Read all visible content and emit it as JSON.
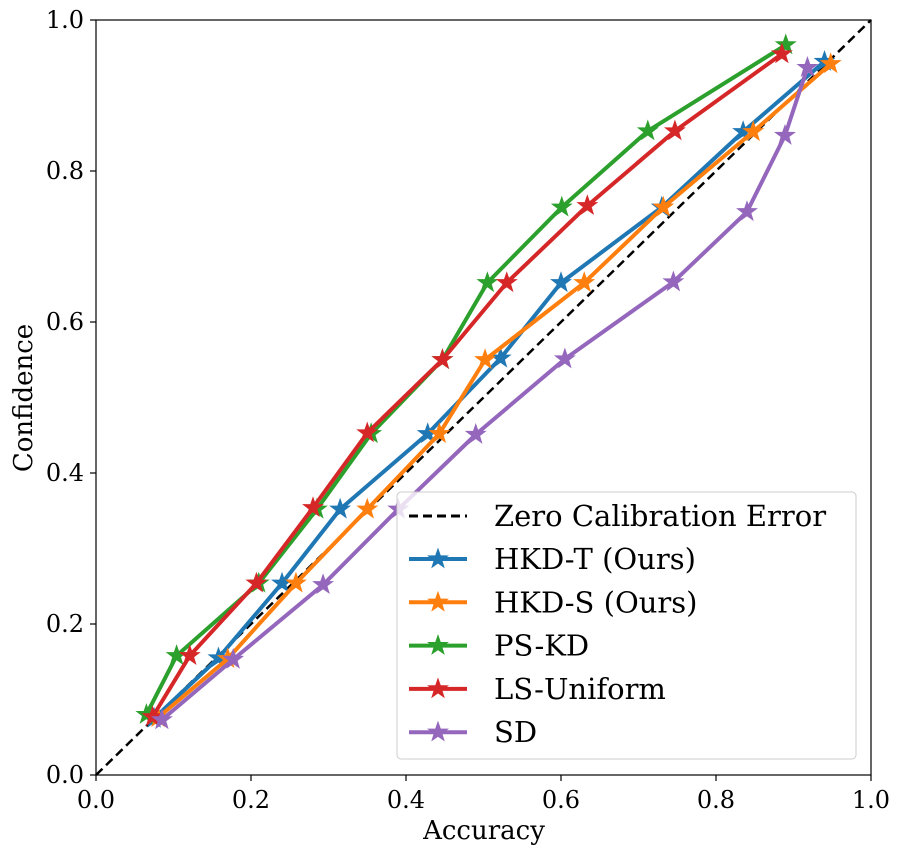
{
  "chart_data": {
    "type": "line",
    "xlabel": "Accuracy",
    "ylabel": "Confidence",
    "xlim": [
      0.0,
      1.0
    ],
    "ylim": [
      0.0,
      1.0
    ],
    "x_ticks": [
      "0.0",
      "0.2",
      "0.4",
      "0.6",
      "0.8",
      "1.0"
    ],
    "y_ticks": [
      "0.0",
      "0.2",
      "0.4",
      "0.6",
      "0.8",
      "1.0"
    ],
    "grid": false,
    "legend_position": "bottom-right",
    "reference_line": {
      "name": "Zero Calibration Error",
      "points": [
        [
          0,
          0
        ],
        [
          1,
          1
        ]
      ],
      "color": "#000000",
      "style": "dashed"
    },
    "series": [
      {
        "name": "HKD-T (Ours)",
        "color": "#1f77b4",
        "marker": "star",
        "points": [
          [
            0.075,
            0.075
          ],
          [
            0.158,
            0.155
          ],
          [
            0.24,
            0.254
          ],
          [
            0.315,
            0.352
          ],
          [
            0.428,
            0.452
          ],
          [
            0.522,
            0.552
          ],
          [
            0.6,
            0.652
          ],
          [
            0.73,
            0.752
          ],
          [
            0.835,
            0.852
          ],
          [
            0.94,
            0.945
          ]
        ]
      },
      {
        "name": "HKD-S (Ours)",
        "color": "#ff7f0e",
        "marker": "star",
        "points": [
          [
            0.08,
            0.076
          ],
          [
            0.17,
            0.154
          ],
          [
            0.258,
            0.254
          ],
          [
            0.35,
            0.352
          ],
          [
            0.443,
            0.452
          ],
          [
            0.502,
            0.55
          ],
          [
            0.63,
            0.652
          ],
          [
            0.732,
            0.752
          ],
          [
            0.848,
            0.852
          ],
          [
            0.948,
            0.942
          ]
        ]
      },
      {
        "name": "PS-KD",
        "color": "#2ca02c",
        "marker": "star",
        "points": [
          [
            0.065,
            0.08
          ],
          [
            0.104,
            0.158
          ],
          [
            0.21,
            0.254
          ],
          [
            0.285,
            0.352
          ],
          [
            0.355,
            0.452
          ],
          [
            0.447,
            0.55
          ],
          [
            0.505,
            0.652
          ],
          [
            0.601,
            0.752
          ],
          [
            0.712,
            0.853
          ],
          [
            0.89,
            0.967
          ]
        ]
      },
      {
        "name": "LS-Uniform",
        "color": "#d62728",
        "marker": "star",
        "points": [
          [
            0.073,
            0.077
          ],
          [
            0.121,
            0.158
          ],
          [
            0.207,
            0.254
          ],
          [
            0.28,
            0.354
          ],
          [
            0.35,
            0.453
          ],
          [
            0.447,
            0.55
          ],
          [
            0.53,
            0.652
          ],
          [
            0.634,
            0.754
          ],
          [
            0.747,
            0.853
          ],
          [
            0.885,
            0.955
          ]
        ]
      },
      {
        "name": "SD",
        "color": "#9467bd",
        "marker": "star",
        "points": [
          [
            0.085,
            0.073
          ],
          [
            0.177,
            0.153
          ],
          [
            0.293,
            0.252
          ],
          [
            0.39,
            0.352
          ],
          [
            0.49,
            0.451
          ],
          [
            0.605,
            0.551
          ],
          [
            0.745,
            0.653
          ],
          [
            0.84,
            0.746
          ],
          [
            0.889,
            0.847
          ],
          [
            0.918,
            0.937
          ]
        ]
      }
    ]
  }
}
